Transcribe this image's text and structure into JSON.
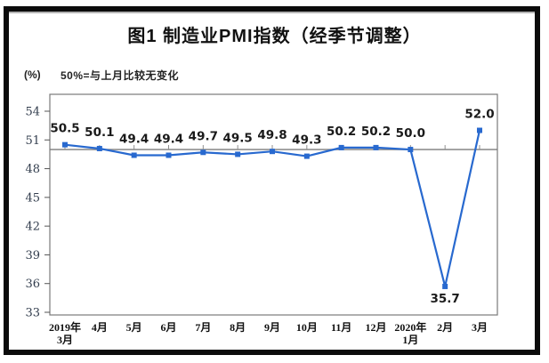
{
  "figure": {
    "title": "图1 制造业PMI指数（经季节调整）",
    "unit_label": "(%)",
    "subtitle": "50%=与上月比较无变化"
  },
  "chart_data": {
    "type": "line",
    "title": "图1 制造业PMI指数（经季节调整）",
    "subtitle": "50%=与上月比较无变化",
    "ylabel": "(%)",
    "xlabel": "",
    "categories": [
      "2019年\n3月",
      "4月",
      "5月",
      "6月",
      "7月",
      "8月",
      "9月",
      "10月",
      "11月",
      "12月",
      "2020年\n1月",
      "2月",
      "3月"
    ],
    "values": [
      50.5,
      50.1,
      49.4,
      49.4,
      49.7,
      49.5,
      49.8,
      49.3,
      50.2,
      50.2,
      50.0,
      35.7,
      52.0
    ],
    "data_labels": [
      "50.5",
      "50.1",
      "49.4",
      "49.4",
      "49.7",
      "49.5",
      "49.8",
      "49.3",
      "50.2",
      "50.2",
      "50.0",
      "35.7",
      "52.0"
    ],
    "y_ticks": [
      54,
      51,
      48,
      45,
      42,
      39,
      36,
      33
    ],
    "ylim": [
      33,
      55.8
    ],
    "reference_line": 50,
    "grid": false,
    "legend_position": "none",
    "line_color": "#2869cf",
    "marker": "square",
    "marker_color": "#2869cf",
    "label_color": "#1a1a1a",
    "axis_color": "#7a7a7a",
    "reference_line_color": "#8f8f8f"
  }
}
